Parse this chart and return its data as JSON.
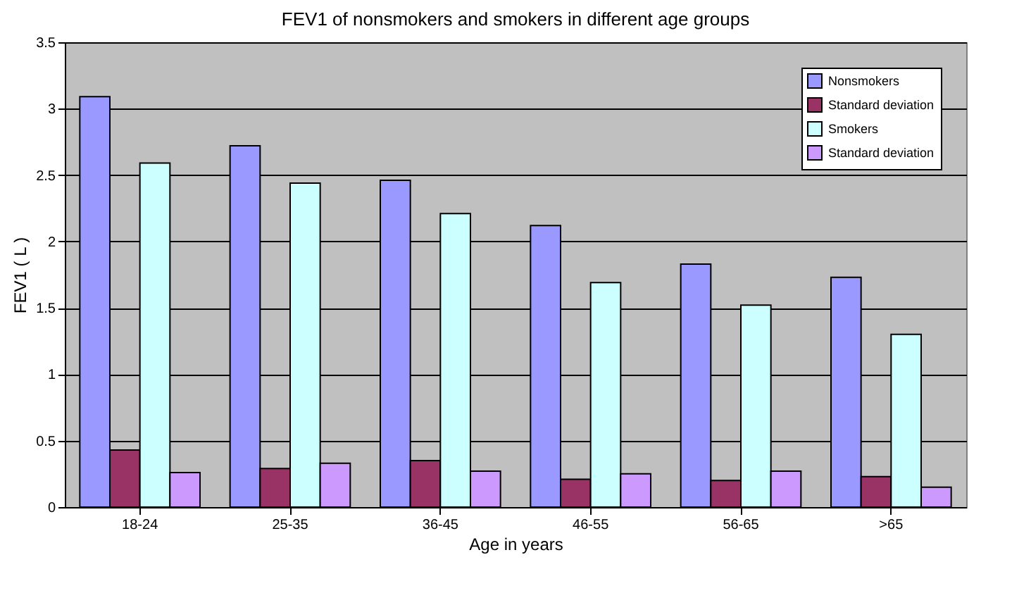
{
  "chart_data": {
    "type": "bar",
    "title": "FEV1 of nonsmokers and smokers in different age groups",
    "xlabel": "Age in years",
    "ylabel": "FEV1 ( L )",
    "categories": [
      "18-24",
      "25-35",
      "36-45",
      "46-55",
      "56-65",
      ">65"
    ],
    "series": [
      {
        "name": "Nonsmokers",
        "color": "#9999ff",
        "values": [
          3.09,
          2.72,
          2.46,
          2.12,
          1.83,
          1.73
        ]
      },
      {
        "name": "Standard deviation",
        "color": "#993366",
        "values": [
          0.43,
          0.29,
          0.35,
          0.21,
          0.2,
          0.23
        ]
      },
      {
        "name": "Smokers",
        "color": "#ccffff",
        "values": [
          2.59,
          2.44,
          2.21,
          1.69,
          1.52,
          1.3
        ]
      },
      {
        "name": "Standard deviation",
        "color": "#cc99ff",
        "values": [
          0.26,
          0.33,
          0.27,
          0.25,
          0.27,
          0.15
        ]
      }
    ],
    "ylim": [
      0,
      3.5
    ],
    "yticks": [
      0,
      0.5,
      1,
      1.5,
      2,
      2.5,
      3,
      3.5
    ],
    "grid": "y",
    "legend": "top right"
  }
}
